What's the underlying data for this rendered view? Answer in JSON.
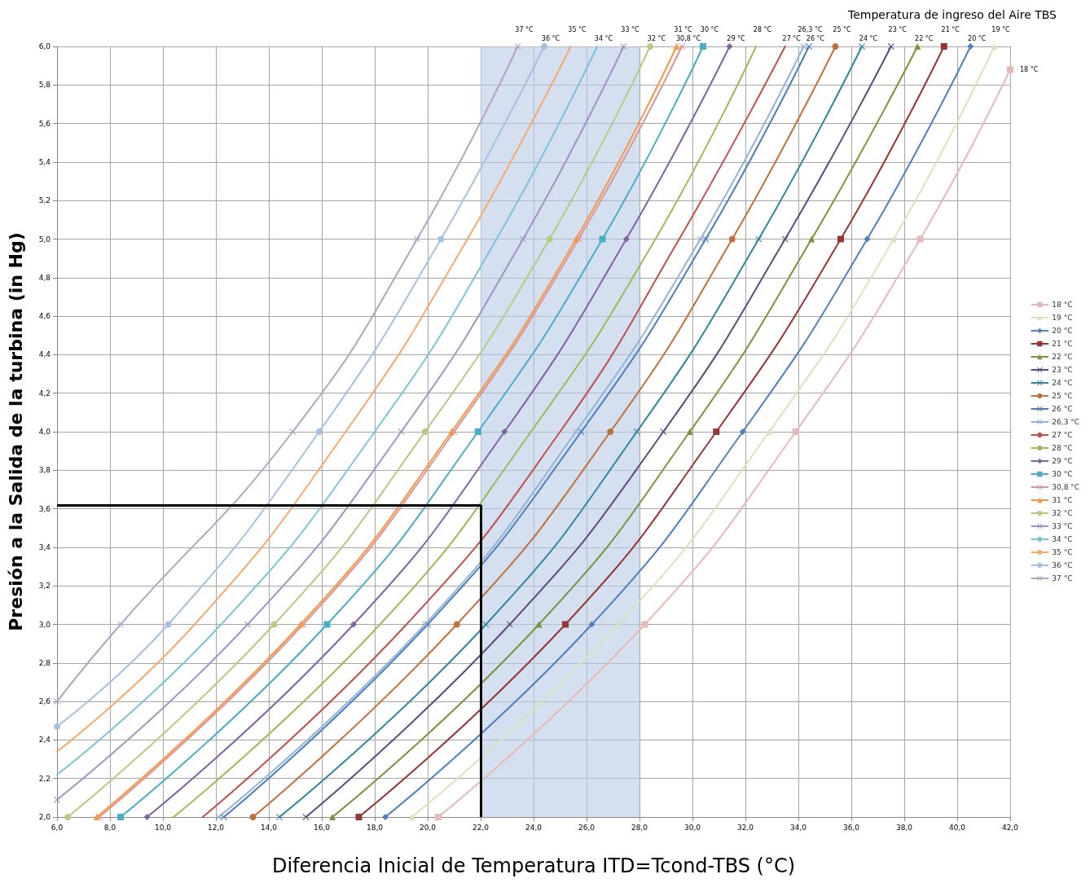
{
  "chart_data": {
    "type": "line",
    "xlabel": "Diferencia Inicial de Temperatura ITD=Tcond-TBS (°C)",
    "ylabel": "Presión a la Salida de la turbina (in Hg)",
    "legend_title": "Temperatura de ingreso del Aire TBS",
    "xlim": [
      6,
      42
    ],
    "xticks": [
      {
        "value": 6,
        "label": "6,0"
      },
      {
        "value": 8,
        "label": "8,0"
      },
      {
        "value": 10,
        "label": "10,0"
      },
      {
        "value": 12,
        "label": "12,0"
      },
      {
        "value": 14,
        "label": "14,0"
      },
      {
        "value": 16,
        "label": "16,0"
      },
      {
        "value": 18,
        "label": "18,0"
      },
      {
        "value": 20,
        "label": "20,0"
      },
      {
        "value": 22,
        "label": "22,0"
      },
      {
        "value": 24,
        "label": "24,0"
      },
      {
        "value": 26,
        "label": "26,0"
      },
      {
        "value": 28,
        "label": "28,0"
      },
      {
        "value": 30,
        "label": "30,0"
      },
      {
        "value": 32,
        "label": "32,0"
      },
      {
        "value": 34,
        "label": "34,0"
      },
      {
        "value": 36,
        "label": "36,0"
      },
      {
        "value": 38,
        "label": "38,0"
      },
      {
        "value": 40,
        "label": "40,0"
      },
      {
        "value": 42,
        "label": "42,0"
      }
    ],
    "ylim": [
      2,
      6
    ],
    "yticks": [
      {
        "value": 2,
        "label": "2,0"
      },
      {
        "value": 2.2,
        "label": "2,2"
      },
      {
        "value": 2.4,
        "label": "2,4"
      },
      {
        "value": 2.6,
        "label": "2,6"
      },
      {
        "value": 2.8,
        "label": "2,8"
      },
      {
        "value": 3,
        "label": "3,0"
      },
      {
        "value": 3.2,
        "label": "3,2"
      },
      {
        "value": 3.4,
        "label": "3,4"
      },
      {
        "value": 3.6,
        "label": "3,6"
      },
      {
        "value": 3.8,
        "label": "3,8"
      },
      {
        "value": 4,
        "label": "4,0"
      },
      {
        "value": 4.2,
        "label": "4,2"
      },
      {
        "value": 4.4,
        "label": "4,4"
      },
      {
        "value": 4.6,
        "label": "4,6"
      },
      {
        "value": 4.8,
        "label": "4,8"
      },
      {
        "value": 5,
        "label": "5,0"
      },
      {
        "value": 5.2,
        "label": "5,2"
      },
      {
        "value": 5.4,
        "label": "5,4"
      },
      {
        "value": 5.6,
        "label": "5,6"
      },
      {
        "value": 5.8,
        "label": "5,8"
      },
      {
        "value": 6,
        "label": "6,0"
      }
    ],
    "grid": true,
    "legend": "right",
    "bands": [
      {
        "axis": "x",
        "from": 22,
        "to": 28,
        "color": "#b8cce4"
      }
    ],
    "ref_lines": [
      {
        "axis": "y",
        "value": 3.62,
        "color": "#000000"
      },
      {
        "axis": "x",
        "value": 22,
        "color": "#000000"
      }
    ],
    "series": [
      {
        "name": "18 °C",
        "color": "#e6b9b8",
        "marker": "square",
        "x": [
          20.4,
          28.2,
          33.9,
          38.6,
          42
        ],
        "values": [
          2,
          3,
          4,
          5,
          5.88
        ]
      },
      {
        "name": "19 °C",
        "color": "#d7e4bd",
        "marker": "triangle",
        "x": [
          19.4,
          27.2,
          32.9,
          37.6,
          41.4
        ],
        "values": [
          2,
          3,
          4,
          5,
          6
        ]
      },
      {
        "name": "20 °C",
        "color": "#4f81bd",
        "marker": "diamond",
        "x": [
          18.4,
          26.2,
          31.9,
          36.6,
          40.5
        ],
        "values": [
          2,
          3,
          4,
          5,
          6
        ]
      },
      {
        "name": "21 °C",
        "color": "#953735",
        "marker": "square",
        "x": [
          17.4,
          25.2,
          30.9,
          35.6,
          39.5
        ],
        "values": [
          2,
          3,
          4,
          5,
          6
        ]
      },
      {
        "name": "22 °C",
        "color": "#77933c",
        "marker": "triangle",
        "x": [
          16.4,
          24.2,
          29.9,
          34.5,
          38.5
        ],
        "values": [
          2,
          3,
          4,
          5,
          6
        ]
      },
      {
        "name": "23 °C",
        "color": "#604a7b",
        "marker": "cross",
        "x": [
          15.4,
          23.1,
          28.9,
          33.5,
          37.5
        ],
        "values": [
          2,
          3,
          4,
          5,
          6
        ]
      },
      {
        "name": "24 °C",
        "color": "#31859c",
        "marker": "cross",
        "x": [
          14.4,
          22.2,
          27.9,
          32.5,
          36.4
        ],
        "values": [
          2,
          3,
          4,
          5,
          6
        ]
      },
      {
        "name": "25 °C",
        "color": "#c0703c",
        "marker": "circle",
        "x": [
          13.4,
          21.1,
          26.9,
          31.5,
          35.4
        ],
        "values": [
          2,
          3,
          4,
          5,
          6
        ]
      },
      {
        "name": "26 °C",
        "color": "#4a7ebb",
        "marker": "cross",
        "x": [
          12.3,
          20.0,
          25.8,
          30.5,
          34.4
        ],
        "values": [
          2,
          3,
          4,
          5,
          6
        ]
      },
      {
        "name": "26,3 °C",
        "color": "#95b3d7",
        "marker": "cross",
        "x": [
          12.1,
          19.9,
          25.6,
          30.3,
          34.2
        ],
        "values": [
          2,
          3,
          4,
          5,
          6
        ]
      },
      {
        "name": "27 °C",
        "color": "#c0504d",
        "marker": "none",
        "x": [
          11.5,
          19.2,
          25.0,
          29.5,
          33.5
        ],
        "values": [
          2,
          3,
          4,
          5,
          6
        ]
      },
      {
        "name": "28 °C",
        "color": "#9bbb59",
        "marker": "none",
        "x": [
          10.4,
          18.2,
          23.9,
          28.6,
          32.4
        ],
        "values": [
          2,
          3,
          4,
          5,
          6
        ]
      },
      {
        "name": "29 °C",
        "color": "#8064a2",
        "marker": "diamond",
        "x": [
          9.4,
          17.2,
          22.9,
          27.5,
          31.4
        ],
        "values": [
          2,
          3,
          4,
          5,
          6
        ]
      },
      {
        "name": "30 °C",
        "color": "#4bacc6",
        "marker": "square",
        "x": [
          8.4,
          16.2,
          21.9,
          26.6,
          30.4
        ],
        "values": [
          2,
          3,
          4,
          5,
          6
        ]
      },
      {
        "name": "30,8 °C",
        "color": "#d99694",
        "marker": "cross",
        "x": [
          7.6,
          15.3,
          21.0,
          25.7,
          29.6
        ],
        "values": [
          2,
          3,
          4,
          5,
          6
        ]
      },
      {
        "name": "31 °C",
        "color": "#f79646",
        "marker": "triangle",
        "x": [
          7.5,
          15.2,
          20.9,
          25.6,
          29.4
        ],
        "values": [
          2,
          3,
          4,
          5,
          6
        ]
      },
      {
        "name": "32 °C",
        "color": "#b3cc82",
        "marker": "circle",
        "x": [
          6.4,
          14.2,
          19.9,
          24.6,
          28.4
        ],
        "values": [
          2,
          3,
          4,
          5,
          6
        ]
      },
      {
        "name": "33 °C",
        "color": "#a193c2",
        "marker": "cross",
        "x": [
          6,
          13.2,
          19.0,
          23.6,
          27.4
        ],
        "values": [
          2.09,
          3,
          4,
          5,
          6
        ]
      },
      {
        "name": "34 °C",
        "color": "#7cc3d6",
        "marker": "none",
        "x": [
          6,
          12.2,
          18.0,
          22.6,
          26.4
        ],
        "values": [
          2.22,
          3,
          4,
          5,
          6
        ]
      },
      {
        "name": "35 °C",
        "color": "#f5a96e",
        "marker": "none",
        "x": [
          6,
          11.2,
          16.9,
          21.5,
          25.4
        ],
        "values": [
          2.34,
          3,
          4,
          5,
          6
        ]
      },
      {
        "name": "36 °C",
        "color": "#a7c0de",
        "marker": "circle",
        "x": [
          6,
          10.2,
          15.9,
          20.5,
          24.4
        ],
        "values": [
          2.47,
          3,
          4,
          5,
          6
        ]
      },
      {
        "name": "37 °C",
        "color": "#b3a2c7",
        "marker": "cross",
        "x": [
          6,
          8.4,
          14.9,
          19.6,
          23.4
        ],
        "values": [
          2.6,
          3,
          4,
          5,
          6
        ]
      }
    ]
  }
}
